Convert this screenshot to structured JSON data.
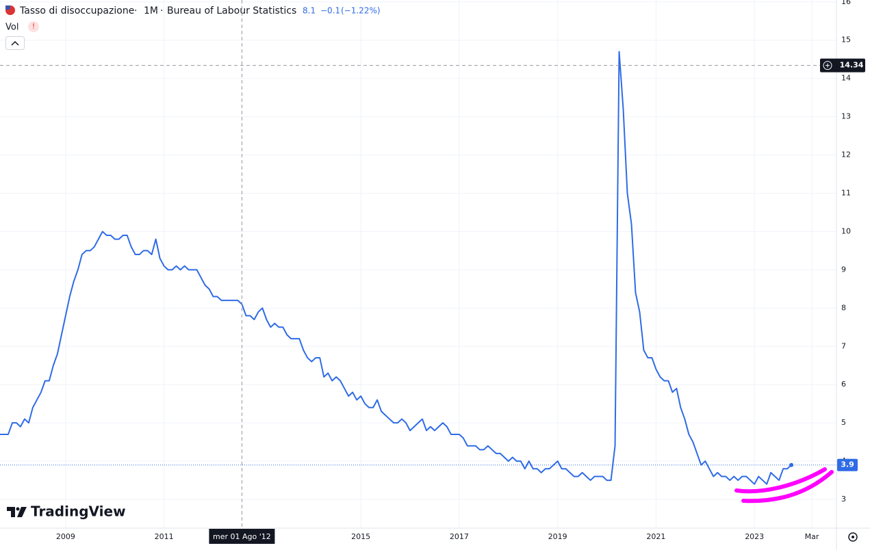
{
  "legend": {
    "title": "Tasso di disoccupazione",
    "interval": "1M",
    "source": "Bureau of Labour Statistics",
    "value": "8.1",
    "change": "−0.1",
    "change_pct": "(−1.22%)",
    "vol": "Vol",
    "alert": "!"
  },
  "branding": "TradingView",
  "chart_data": {
    "type": "line",
    "x": [
      "2007-09",
      "2007-10",
      "2007-11",
      "2007-12",
      "2008-01",
      "2008-02",
      "2008-03",
      "2008-04",
      "2008-05",
      "2008-06",
      "2008-07",
      "2008-08",
      "2008-09",
      "2008-10",
      "2008-11",
      "2008-12",
      "2009-01",
      "2009-02",
      "2009-03",
      "2009-04",
      "2009-05",
      "2009-06",
      "2009-07",
      "2009-08",
      "2009-09",
      "2009-10",
      "2009-11",
      "2009-12",
      "2010-01",
      "2010-02",
      "2010-03",
      "2010-04",
      "2010-05",
      "2010-06",
      "2010-07",
      "2010-08",
      "2010-09",
      "2010-10",
      "2010-11",
      "2010-12",
      "2011-01",
      "2011-02",
      "2011-03",
      "2011-04",
      "2011-05",
      "2011-06",
      "2011-07",
      "2011-08",
      "2011-09",
      "2011-10",
      "2011-11",
      "2011-12",
      "2012-01",
      "2012-02",
      "2012-03",
      "2012-04",
      "2012-05",
      "2012-06",
      "2012-07",
      "2012-08",
      "2012-09",
      "2012-10",
      "2012-11",
      "2012-12",
      "2013-01",
      "2013-02",
      "2013-03",
      "2013-04",
      "2013-05",
      "2013-06",
      "2013-07",
      "2013-08",
      "2013-09",
      "2013-10",
      "2013-11",
      "2013-12",
      "2014-01",
      "2014-02",
      "2014-03",
      "2014-04",
      "2014-05",
      "2014-06",
      "2014-07",
      "2014-08",
      "2014-09",
      "2014-10",
      "2014-11",
      "2014-12",
      "2015-01",
      "2015-02",
      "2015-03",
      "2015-04",
      "2015-05",
      "2015-06",
      "2015-07",
      "2015-08",
      "2015-09",
      "2015-10",
      "2015-11",
      "2015-12",
      "2016-01",
      "2016-02",
      "2016-03",
      "2016-04",
      "2016-05",
      "2016-06",
      "2016-07",
      "2016-08",
      "2016-09",
      "2016-10",
      "2016-11",
      "2016-12",
      "2017-01",
      "2017-02",
      "2017-03",
      "2017-04",
      "2017-05",
      "2017-06",
      "2017-07",
      "2017-08",
      "2017-09",
      "2017-10",
      "2017-11",
      "2017-12",
      "2018-01",
      "2018-02",
      "2018-03",
      "2018-04",
      "2018-05",
      "2018-06",
      "2018-07",
      "2018-08",
      "2018-09",
      "2018-10",
      "2018-11",
      "2018-12",
      "2019-01",
      "2019-02",
      "2019-03",
      "2019-04",
      "2019-05",
      "2019-06",
      "2019-07",
      "2019-08",
      "2019-09",
      "2019-10",
      "2019-11",
      "2019-12",
      "2020-01",
      "2020-02",
      "2020-03",
      "2020-04",
      "2020-05",
      "2020-06",
      "2020-07",
      "2020-08",
      "2020-09",
      "2020-10",
      "2020-11",
      "2020-12",
      "2021-01",
      "2021-02",
      "2021-03",
      "2021-04",
      "2021-05",
      "2021-06",
      "2021-07",
      "2021-08",
      "2021-09",
      "2021-10",
      "2021-11",
      "2021-12",
      "2022-01",
      "2022-02",
      "2022-03",
      "2022-04",
      "2022-05",
      "2022-06",
      "2022-07",
      "2022-08",
      "2022-09",
      "2022-10",
      "2022-11",
      "2022-12",
      "2023-01",
      "2023-02",
      "2023-03",
      "2023-04",
      "2023-05",
      "2023-06",
      "2023-07",
      "2023-08",
      "2023-09",
      "2023-10"
    ],
    "series": [
      {
        "color": "#2e6be6",
        "values": [
          4.7,
          4.7,
          4.7,
          5.0,
          5.0,
          4.9,
          5.1,
          5.0,
          5.4,
          5.6,
          5.8,
          6.1,
          6.1,
          6.5,
          6.8,
          7.3,
          7.8,
          8.3,
          8.7,
          9.0,
          9.4,
          9.5,
          9.5,
          9.6,
          9.8,
          10.0,
          9.9,
          9.9,
          9.8,
          9.8,
          9.9,
          9.9,
          9.6,
          9.4,
          9.4,
          9.5,
          9.5,
          9.4,
          9.8,
          9.3,
          9.1,
          9.0,
          9.0,
          9.1,
          9.0,
          9.1,
          9.0,
          9.0,
          9.0,
          8.8,
          8.6,
          8.5,
          8.3,
          8.3,
          8.2,
          8.2,
          8.2,
          8.2,
          8.2,
          8.1,
          7.8,
          7.8,
          7.7,
          7.9,
          8.0,
          7.7,
          7.5,
          7.6,
          7.5,
          7.5,
          7.3,
          7.2,
          7.2,
          7.2,
          6.9,
          6.7,
          6.6,
          6.7,
          6.7,
          6.2,
          6.3,
          6.1,
          6.2,
          6.1,
          5.9,
          5.7,
          5.8,
          5.6,
          5.7,
          5.5,
          5.4,
          5.4,
          5.6,
          5.3,
          5.2,
          5.1,
          5.0,
          5.0,
          5.1,
          5.0,
          4.8,
          4.9,
          5.0,
          5.1,
          4.8,
          4.9,
          4.8,
          4.9,
          5.0,
          4.9,
          4.7,
          4.7,
          4.7,
          4.6,
          4.4,
          4.4,
          4.4,
          4.3,
          4.3,
          4.4,
          4.3,
          4.2,
          4.2,
          4.1,
          4.0,
          4.1,
          4.0,
          4.0,
          3.8,
          4.0,
          3.8,
          3.8,
          3.7,
          3.8,
          3.8,
          3.9,
          4.0,
          3.8,
          3.8,
          3.7,
          3.6,
          3.6,
          3.7,
          3.6,
          3.5,
          3.6,
          3.6,
          3.6,
          3.5,
          3.5,
          4.4,
          14.7,
          13.2,
          11.0,
          10.2,
          8.4,
          7.9,
          6.9,
          6.7,
          6.7,
          6.4,
          6.2,
          6.1,
          6.1,
          5.8,
          5.9,
          5.4,
          5.1,
          4.7,
          4.5,
          4.2,
          3.9,
          4.0,
          3.8,
          3.6,
          3.7,
          3.6,
          3.6,
          3.5,
          3.6,
          3.5,
          3.6,
          3.6,
          3.5,
          3.4,
          3.6,
          3.5,
          3.4,
          3.7,
          3.6,
          3.5,
          3.8,
          3.8,
          3.9
        ]
      }
    ],
    "xlim": [
      "2007-09",
      "2024-09"
    ],
    "xticks": [
      {
        "value": "2009-01",
        "label": "2009"
      },
      {
        "value": "2011-01",
        "label": "2011"
      },
      {
        "value": "2015-01",
        "label": "2015"
      },
      {
        "value": "2017-01",
        "label": "2017"
      },
      {
        "value": "2019-01",
        "label": "2019"
      },
      {
        "value": "2021-01",
        "label": "2021"
      },
      {
        "value": "2023-01",
        "label": "2023"
      },
      {
        "value": "2024-03",
        "label": "Mar"
      }
    ],
    "ylim": [
      2.25,
      16.05
    ],
    "yticks": [
      3,
      4,
      5,
      6,
      7,
      8,
      9,
      10,
      11,
      12,
      13,
      14,
      15,
      16
    ],
    "grid": true,
    "crosshair": {
      "x": {
        "value": "2012-08",
        "label": "mer 01 Ago '12"
      },
      "y": 14.34
    }
  }
}
